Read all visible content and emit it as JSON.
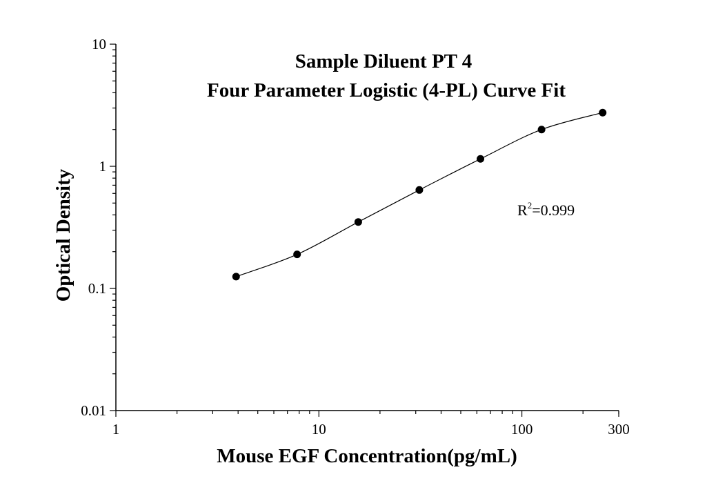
{
  "chart_data": {
    "type": "scatter",
    "title_lines": [
      "Sample Diluent PT 4",
      "Four Parameter Logistic (4-PL) Curve Fit"
    ],
    "xlabel": "Mouse EGF Concentration(pg/mL)",
    "ylabel": "Optical Density",
    "x_scale": "log",
    "y_scale": "log",
    "xlim": [
      1,
      300
    ],
    "ylim": [
      0.01,
      10
    ],
    "x_tick_labels": [
      {
        "value": 1,
        "label": "1"
      },
      {
        "value": 10,
        "label": "10"
      },
      {
        "value": 100,
        "label": "100"
      },
      {
        "value": 300,
        "label": "300"
      }
    ],
    "y_tick_labels": [
      {
        "value": 10,
        "label": "10"
      },
      {
        "value": 1,
        "label": "1"
      },
      {
        "value": 0.1,
        "label": "0.1"
      },
      {
        "value": 0.01,
        "label": "0.01"
      }
    ],
    "x": [
      3.91,
      7.81,
      15.63,
      31.25,
      62.5,
      125,
      250
    ],
    "y": [
      0.125,
      0.19,
      0.35,
      0.64,
      1.15,
      2.0,
      2.75
    ],
    "fit": "4-PL curve",
    "annotation": {
      "prefix": "R",
      "superscript": "2",
      "text": "=0.999"
    },
    "grid": false,
    "legend": "none"
  }
}
